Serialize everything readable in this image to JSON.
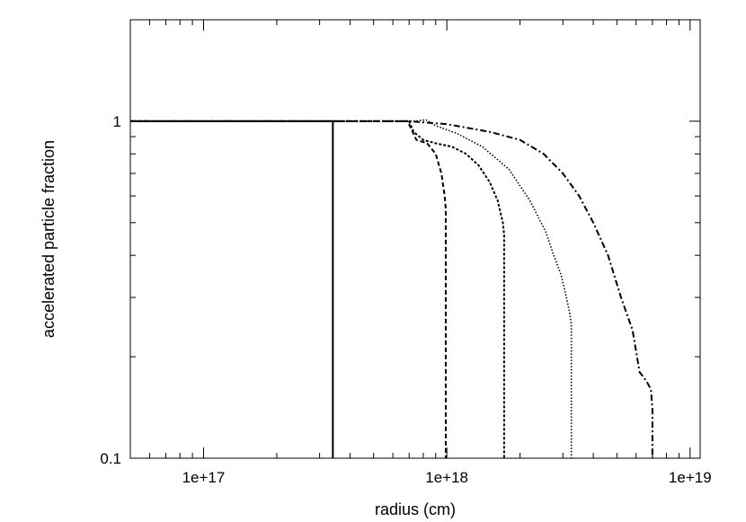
{
  "chart_data": {
    "type": "line",
    "title": "",
    "xlabel": "radius (cm)",
    "ylabel": "accelerated particle fraction",
    "xscale": "log",
    "yscale": "log",
    "xlim": [
      5e+16,
      1.1e+19
    ],
    "ylim": [
      0.1,
      2.0
    ],
    "grid": false,
    "legend": "none",
    "xticks": [
      {
        "value": 1e+17,
        "label": "1e+17"
      },
      {
        "value": 1e+18,
        "label": "1e+18"
      },
      {
        "value": 1e+19,
        "label": "1e+19"
      }
    ],
    "yticks": [
      {
        "value": 0.1,
        "label": "0.1"
      },
      {
        "value": 1,
        "label": "1"
      }
    ],
    "series": [
      {
        "style": "solid",
        "x": [
          5e+16,
          3.4e+17,
          3.4e+17
        ],
        "y": [
          1.0,
          1.0,
          0.1
        ]
      },
      {
        "style": "dashed",
        "x": [
          5e+16,
          6.9e+17,
          7.5e+17,
          8.3e+17,
          9e+17,
          9.5e+17,
          9.8e+17,
          9.9e+17,
          9.9e+17
        ],
        "y": [
          1.0,
          1.0,
          0.88,
          0.86,
          0.8,
          0.7,
          0.6,
          0.55,
          0.1
        ]
      },
      {
        "style": "dense-dashed",
        "x": [
          5e+16,
          7e+17,
          7.3e+17,
          8e+17,
          9e+17,
          1.05e+18,
          1.2e+18,
          1.35e+18,
          1.5e+18,
          1.62e+18,
          1.7e+18,
          1.72e+18,
          1.72e+18,
          1.72e+18
        ],
        "y": [
          1.0,
          1.0,
          0.93,
          0.88,
          0.86,
          0.84,
          0.8,
          0.74,
          0.66,
          0.58,
          0.5,
          0.46,
          0.37,
          0.1
        ]
      },
      {
        "style": "dotted",
        "x": [
          5e+16,
          7.4e+17,
          8.2e+17,
          9e+17,
          1.1e+18,
          1.4e+18,
          1.8e+18,
          2.2e+18,
          2.55e+18,
          2.75e+18,
          2.95e+18,
          3.1e+18,
          3.2e+18,
          3.25e+18,
          3.25e+18
        ],
        "y": [
          1.0,
          1.0,
          1.01,
          0.97,
          0.92,
          0.84,
          0.72,
          0.58,
          0.47,
          0.4,
          0.35,
          0.3,
          0.27,
          0.25,
          0.1
        ]
      },
      {
        "style": "dash-dot",
        "x": [
          5e+16,
          7e+17,
          1e+18,
          1.5e+18,
          2e+18,
          2.5e+18,
          3e+18,
          3.5e+18,
          4e+18,
          4.6e+18,
          5.2e+18,
          5.8e+18,
          6.2e+18,
          6.6e+18,
          6.9e+18,
          7e+18,
          7e+18
        ],
        "y": [
          1.0,
          1.0,
          0.98,
          0.93,
          0.88,
          0.8,
          0.7,
          0.6,
          0.5,
          0.4,
          0.3,
          0.24,
          0.18,
          0.17,
          0.16,
          0.14,
          0.1
        ]
      }
    ]
  }
}
